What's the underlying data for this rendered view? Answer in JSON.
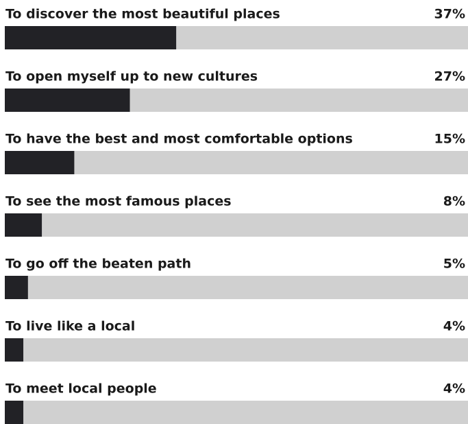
{
  "chart_data": {
    "type": "bar",
    "orientation": "horizontal",
    "categories": [
      "To discover the most beautiful places",
      "To open myself up to new cultures",
      "To have the best and most comfortable options",
      "To see the most famous places",
      "To go off the beaten path",
      "To live like a local",
      "To meet local people"
    ],
    "values": [
      37,
      27,
      15,
      8,
      5,
      4,
      4
    ],
    "value_labels": [
      "37%",
      "27%",
      "15%",
      "8%",
      "5%",
      "4%",
      "4%"
    ],
    "color": "#222226",
    "track_color": "#d0d0d0",
    "xlim": [
      0,
      100
    ]
  }
}
